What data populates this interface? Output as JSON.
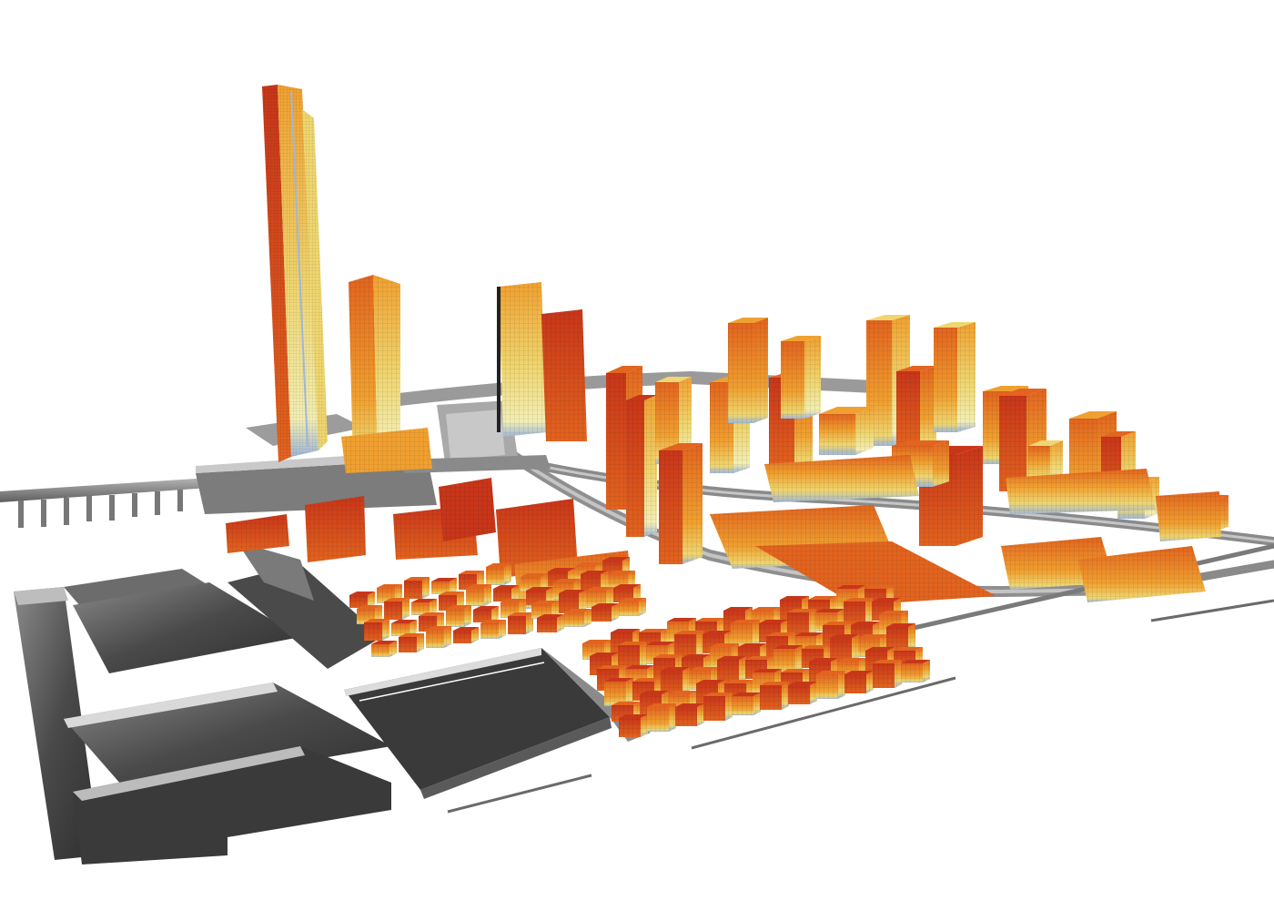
{
  "diagram": {
    "kind": "urban-solar-radiation-3d-model",
    "colors": {
      "background": "#ffffff",
      "high": "#c8361a",
      "mid_high": "#e2641f",
      "mid": "#f0a030",
      "low_mid": "#efd670",
      "low": "#f3eeb4",
      "shade": "#9fb7d8",
      "infrastructure": "#8a8a8a",
      "infrastructure_dark": "#5a5a5a",
      "context_dark": "#3e3e3e",
      "context_light": "#d9d9d9"
    }
  }
}
